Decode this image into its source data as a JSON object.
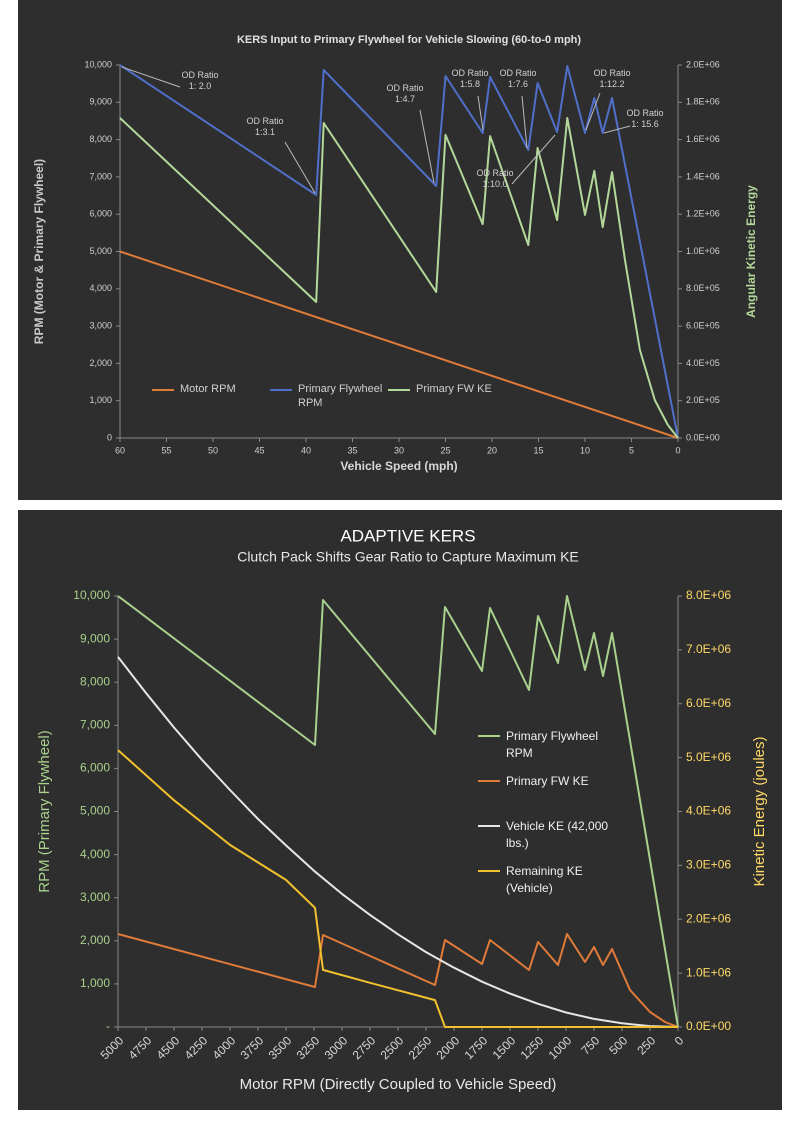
{
  "chart_data": [
    {
      "type": "line",
      "title": "KERS Input to Primary Flywheel for Vehicle Slowing (60-to-0 mph)",
      "x_label": "Vehicle Speed (mph)",
      "y_label": "RPM (Motor & Primary Flywheel)",
      "y2_label": "Angular Kinetic Energy",
      "xlim": [
        60,
        0
      ],
      "xticks": [
        60,
        55,
        50,
        45,
        40,
        35,
        30,
        25,
        20,
        15,
        10,
        5,
        0
      ],
      "ylim": [
        0,
        10000
      ],
      "yticks": [
        0,
        {
          "value": 1000,
          "label": "1,000"
        },
        {
          "value": 2000,
          "label": "2,000"
        },
        {
          "value": 3000,
          "label": "3,000"
        },
        {
          "value": 4000,
          "label": "4,000"
        },
        {
          "value": 5000,
          "label": "5,000"
        },
        {
          "value": 6000,
          "label": "6,000"
        },
        {
          "value": 7000,
          "label": "7,000"
        },
        {
          "value": 8000,
          "label": "8,000"
        },
        {
          "value": 9000,
          "label": "9,000"
        },
        {
          "value": 10000,
          "label": "10,000"
        }
      ],
      "y2lim": [
        0,
        2000000
      ],
      "y2ticks": [
        {
          "value": 0,
          "label": "0.0E+00"
        },
        {
          "value": 200000,
          "label": "2.0E+05"
        },
        {
          "value": 400000,
          "label": "4.0E+05"
        },
        {
          "value": 600000,
          "label": "6.0E+05"
        },
        {
          "value": 800000,
          "label": "8.0E+05"
        },
        {
          "value": 1000000,
          "label": "1.0E+06"
        },
        {
          "value": 1200000,
          "label": "1.2E+06"
        },
        {
          "value": 1400000,
          "label": "1.4E+06"
        },
        {
          "value": 1600000,
          "label": "1.6E+06"
        },
        {
          "value": 1800000,
          "label": "1.8E+06"
        },
        {
          "value": 2000000,
          "label": "2.0E+06"
        }
      ],
      "grid": false,
      "legend": "lower left",
      "series": [
        {
          "name": "Motor RPM",
          "color": "#e07b39",
          "x": [
            60,
            0
          ],
          "values": [
            5000,
            0
          ]
        },
        {
          "name": "Primary Flywheel RPM",
          "color": "#4f6fc9",
          "x": [
            60,
            38.9,
            38.1,
            26.0,
            25.0,
            21.0,
            20.2,
            16.1,
            15.1,
            13.0,
            11.9,
            10.0,
            9.0,
            8.1,
            7.1,
            0
          ],
          "values": [
            10000,
            6515,
            9866,
            6756,
            9705,
            8177,
            9678,
            7721,
            9517,
            8204,
            9973,
            8177,
            9115,
            8177,
            9115,
            0
          ]
        },
        {
          "name": "Primary FW KE",
          "color": "#b3d89a",
          "axis": "y2",
          "x": [
            60,
            38.9,
            38.1,
            26.0,
            25.0,
            21.0,
            20.2,
            16.1,
            15.1,
            13.0,
            11.9,
            10.0,
            9.0,
            8.1,
            7.1,
            5.7,
            4.1,
            2.5,
            1.1,
            0
          ],
          "values": [
            1716000,
            729000,
            1689000,
            783000,
            1625000,
            1147000,
            1619000,
            1035000,
            1555000,
            1169000,
            1716000,
            1196000,
            1432000,
            1131000,
            1426000,
            954000,
            472000,
            204000,
            70000,
            0
          ]
        }
      ],
      "annotations": [
        "OD Ratio\n1: 2.0",
        "OD Ratio\n1:3.1",
        "OD Ratio\n1:4.7",
        "OD Ratio\n1:5.8",
        "OD Ratio\n1:7.6",
        "OD Ratio\n1:10.0",
        "OD Ratio\n1:12.2",
        "OD Ratio\n1: 15.6"
      ]
    },
    {
      "type": "line",
      "title": "ADAPTIVE KERS",
      "subtitle": "Clutch Pack Shifts Gear Ratio to Capture Maximum KE",
      "x_label": "Motor RPM (Directly Coupled to Vehicle Speed)",
      "y_label": "RPM (Primary Flywheel)",
      "y2_label": "Kinetic Energy (joules)",
      "xlim": [
        5000,
        0
      ],
      "xticks": [
        5000,
        4750,
        4500,
        4250,
        4000,
        3750,
        3500,
        3250,
        3000,
        2750,
        2500,
        2250,
        2000,
        1750,
        1500,
        1250,
        1000,
        750,
        500,
        250,
        0
      ],
      "ylim": [
        0,
        10000
      ],
      "yticks": [
        {
          "value": 0,
          "label": "-"
        },
        {
          "value": 1000,
          "label": "1,000"
        },
        {
          "value": 2000,
          "label": "2,000"
        },
        {
          "value": 3000,
          "label": "3,000"
        },
        {
          "value": 4000,
          "label": "4,000"
        },
        {
          "value": 5000,
          "label": "5,000"
        },
        {
          "value": 6000,
          "label": "6,000"
        },
        {
          "value": 7000,
          "label": "7,000"
        },
        {
          "value": 8000,
          "label": "8,000"
        },
        {
          "value": 9000,
          "label": "9,000"
        },
        {
          "value": 10000,
          "label": "10,000"
        }
      ],
      "y2lim": [
        0,
        8000000
      ],
      "y2ticks": [
        {
          "value": 0,
          "label": "0.0E+00"
        },
        {
          "value": 1000000,
          "label": "1.0E+06"
        },
        {
          "value": 2000000,
          "label": "2.0E+06"
        },
        {
          "value": 3000000,
          "label": "3.0E+06"
        },
        {
          "value": 4000000,
          "label": "4.0E+06"
        },
        {
          "value": 5000000,
          "label": "5.0E+06"
        },
        {
          "value": 6000000,
          "label": "6.0E+06"
        },
        {
          "value": 7000000,
          "label": "7.0E+06"
        },
        {
          "value": 8000000,
          "label": "8.0E+06"
        }
      ],
      "grid": false,
      "legend": "center right",
      "series": [
        {
          "name": "Primary Flywheel RPM",
          "color": "#a9d18e",
          "x": [
            5000,
            3241,
            3170,
            2170,
            2080,
            1750,
            1679,
            1330,
            1250,
            1071,
            991,
            830,
            750,
            670,
            589,
            0
          ],
          "values": [
            10000,
            6543,
            9907,
            6798,
            9745,
            8260,
            9722,
            7819,
            9536,
            8445,
            10000,
            8283,
            9142,
            8144,
            9142,
            0
          ]
        },
        {
          "name": "Primary FW KE",
          "color": "#e07b39",
          "axis": "y2",
          "x": [
            5000,
            3241,
            3170,
            2170,
            2080,
            1750,
            1679,
            1330,
            1250,
            1071,
            991,
            830,
            750,
            670,
            589,
            429,
            250,
            116,
            0
          ],
          "values": [
            1726000,
            742000,
            1708000,
            780000,
            1615000,
            1169000,
            1615000,
            1058000,
            1578000,
            1151000,
            1726000,
            1206000,
            1485000,
            1151000,
            1448000,
            687000,
            278000,
            93000,
            0
          ]
        },
        {
          "name": "Vehicle KE (42,000 lbs.)",
          "color": "#e6e6e6",
          "axis": "y2",
          "x": [
            5000,
            4750,
            4500,
            4250,
            4000,
            3750,
            3500,
            3250,
            3000,
            2750,
            2500,
            2250,
            2000,
            1750,
            1500,
            1250,
            1000,
            750,
            500,
            250,
            0
          ],
          "values": [
            6870000,
            6200000,
            5560000,
            4960000,
            4400000,
            3860000,
            3370000,
            2900000,
            2470000,
            2080000,
            1720000,
            1390000,
            1100000,
            840000,
            620000,
            430000,
            270000,
            150000,
            69000,
            17000,
            0
          ]
        },
        {
          "name": "Remaining KE (Vehicle)",
          "color": "#f2c12e",
          "axis": "y2",
          "x": [
            5000,
            4500,
            4000,
            3500,
            3241,
            3170,
            2750,
            2170,
            2080,
            0
          ],
          "values": [
            5140000,
            4210000,
            3380000,
            2730000,
            2210000,
            1060000,
            820000,
            500000,
            0,
            0
          ]
        }
      ]
    }
  ]
}
